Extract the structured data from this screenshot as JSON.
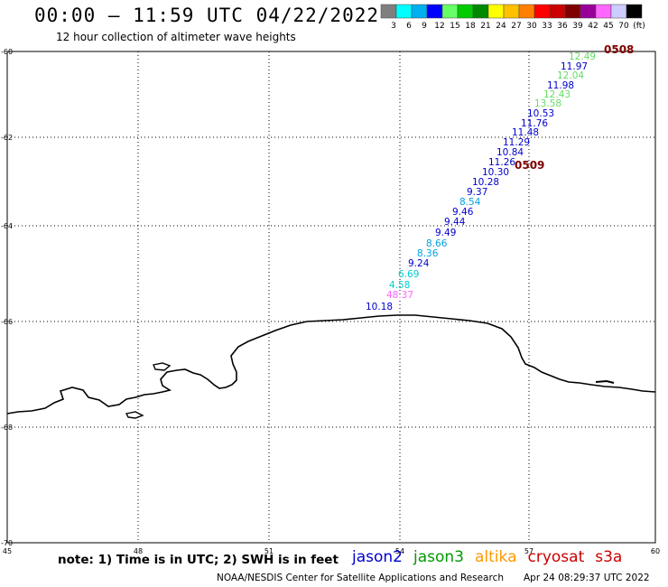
{
  "header": {
    "title": "00:00 – 11:59 UTC 04/22/2022",
    "subtitle": "12 hour collection of altimeter wave heights"
  },
  "colorbar": {
    "colors": [
      "#7f7f7f",
      "#00ffff",
      "#00b0f0",
      "#0000ff",
      "#66ff66",
      "#00cc00",
      "#008800",
      "#ffff00",
      "#ffc000",
      "#ff8000",
      "#ff0000",
      "#cc0000",
      "#800000",
      "#990099",
      "#ff66ff",
      "#ccccff",
      "#000000"
    ],
    "labels": [
      "3",
      "6",
      "9",
      "12",
      "15",
      "18",
      "21",
      "24",
      "27",
      "30",
      "33",
      "36",
      "39",
      "42",
      "45",
      "70",
      "(ft)"
    ]
  },
  "axes": {
    "lat_labels": [
      "-60",
      "-62",
      "-64",
      "-66",
      "-68",
      "-70"
    ],
    "lon_labels": [
      "45",
      "48",
      "51",
      "54",
      "57",
      "60"
    ]
  },
  "pass_labels": [
    {
      "text": "0508",
      "color": "#800000"
    },
    {
      "text": "0509",
      "color": "#800000"
    }
  ],
  "wave_heights": [
    {
      "text": "12.49",
      "color": "#66dd66"
    },
    {
      "text": "11.97",
      "color": "#0000cc"
    },
    {
      "text": "12.04",
      "color": "#66dd66"
    },
    {
      "text": "11.98",
      "color": "#0000cc"
    },
    {
      "text": "12.43",
      "color": "#66dd66"
    },
    {
      "text": "13.58",
      "color": "#66dd66"
    },
    {
      "text": "10.53",
      "color": "#0000cc"
    },
    {
      "text": "11.76",
      "color": "#0000cc"
    },
    {
      "text": "11.48",
      "color": "#0000cc"
    },
    {
      "text": "11.29",
      "color": "#0000cc"
    },
    {
      "text": "10.84",
      "color": "#0000cc"
    },
    {
      "text": "11.26",
      "color": "#0000cc"
    },
    {
      "text": "10.30",
      "color": "#0000cc"
    },
    {
      "text": "10.28",
      "color": "#0000cc"
    },
    {
      "text": "9.37",
      "color": "#0000cc"
    },
    {
      "text": "8.54",
      "color": "#00a0e0"
    },
    {
      "text": "9.46",
      "color": "#0000cc"
    },
    {
      "text": "9.44",
      "color": "#0000cc"
    },
    {
      "text": "9.49",
      "color": "#0000cc"
    },
    {
      "text": "8.66",
      "color": "#00a0e0"
    },
    {
      "text": "8.36",
      "color": "#00a0e0"
    },
    {
      "text": "9.24",
      "color": "#0000cc"
    },
    {
      "text": "6.69",
      "color": "#00cccc"
    },
    {
      "text": "4.58",
      "color": "#00cccc"
    },
    {
      "text": "48.37",
      "color": "#ff66ff"
    },
    {
      "text": "10.18",
      "color": "#0000cc"
    }
  ],
  "legend": {
    "note": "note: 1) Time is in UTC; 2) SWH is in feet",
    "satellites": [
      {
        "name": "jason2",
        "color": "#0000cc"
      },
      {
        "name": "jason3",
        "color": "#009900"
      },
      {
        "name": "altika",
        "color": "#ff9900"
      },
      {
        "name": "cryosat",
        "color": "#cc0000"
      },
      {
        "name": "s3a",
        "color": "#cc0000"
      }
    ]
  },
  "footer": {
    "credit": "NOAA/NESDIS Center for Satellite Applications and Research",
    "timestamp": "Apr 24 08:29:37 UTC 2022"
  }
}
